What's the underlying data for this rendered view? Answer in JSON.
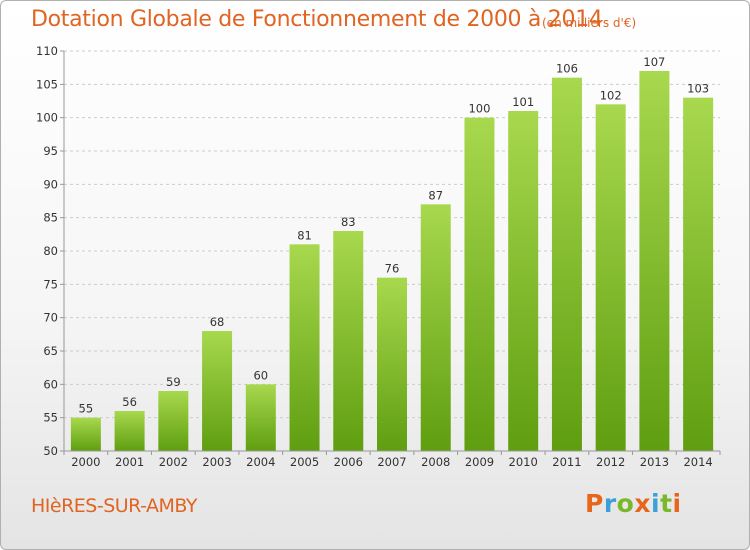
{
  "header": {
    "title": "Dotation Globale de Fonctionnement de 2000 à 2014",
    "subtitle": "(en milliers d'€)"
  },
  "footer": {
    "commune": "HIèRES-SUR-AMBY",
    "logo": "Proxiti"
  },
  "colors": {
    "title": "#e06422",
    "bar_light": "#a8d84e",
    "bar_dark": "#5f9e10",
    "grid": "#cccccc",
    "logo_letters": [
      "#e8661c",
      "#3ba0d8",
      "#7ab82a",
      "#e8661c",
      "#3ba0d8",
      "#7ab82a",
      "#e8661c"
    ]
  },
  "chart_data": {
    "type": "bar",
    "categories": [
      "2000",
      "2001",
      "2002",
      "2003",
      "2004",
      "2005",
      "2006",
      "2007",
      "2008",
      "2009",
      "2010",
      "2011",
      "2012",
      "2013",
      "2014"
    ],
    "values": [
      55,
      56,
      59,
      68,
      60,
      81,
      83,
      76,
      87,
      100,
      101,
      106,
      102,
      107,
      103
    ],
    "title": "Dotation Globale de Fonctionnement de 2000 à 2014",
    "subtitle": "(en milliers d'€)",
    "xlabel": "",
    "ylabel": "",
    "ylim": [
      50,
      110
    ],
    "yticks": [
      50,
      55,
      60,
      65,
      70,
      75,
      80,
      85,
      90,
      95,
      100,
      105,
      110
    ],
    "grid": true,
    "legend": "none"
  }
}
